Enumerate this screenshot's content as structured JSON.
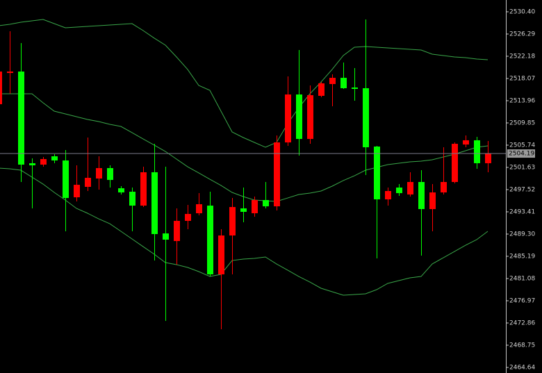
{
  "chart_data": {
    "type": "candlestick",
    "bull_color": "#ff0000",
    "bear_color": "#00ff00",
    "open": [
      2513.31,
      2519.09,
      2519.35,
      2502.4,
      2502.14,
      2503.68,
      2502.91,
      2496.1,
      2498.03,
      2499.57,
      2501.5,
      2497.77,
      2497.13,
      2494.56,
      2500.73,
      2489.42,
      2488.01,
      2491.74,
      2493.15,
      2494.56,
      2481.85,
      2489.04,
      2494.05,
      2493.15,
      2495.59,
      2494.43,
      2506.25,
      2515.11,
      2506.89,
      2514.86,
      2517.04,
      2518.19,
      2516.4,
      2516.27,
      2505.48,
      2495.72,
      2497.9,
      2496.62,
      2498.93,
      2493.92,
      2497.0,
      2498.93,
      2505.86,
      2506.64,
      2502.4
    ],
    "high": [
      2520.38,
      2526.8,
      2524.62,
      2503.3,
      2503.55,
      2504.07,
      2504.84,
      2502.01,
      2507.15,
      2503.68,
      2502.01,
      2498.16,
      2497.9,
      2501.75,
      2505.99,
      2501.75,
      2494.05,
      2494.69,
      2496.87,
      2497.13,
      2490.19,
      2495.97,
      2497.9,
      2496.23,
      2498.93,
      2507.53,
      2518.45,
      2523.33,
      2516.78,
      2517.42,
      2518.84,
      2521.02,
      2519.99,
      2528.98,
      2505.61,
      2497.9,
      2498.54,
      2500.73,
      2501.11,
      2498.54,
      2505.35,
      2506.25,
      2507.53,
      2507.28,
      2506.51
    ],
    "low": [
      2512.03,
      2515.24,
      2498.93,
      2494.05,
      2501.75,
      2502.4,
      2489.81,
      2495.33,
      2497.26,
      2497.52,
      2497.9,
      2496.62,
      2489.81,
      2494.3,
      2484.41,
      2473.24,
      2483.64,
      2490.19,
      2492.76,
      2481.46,
      2471.7,
      2481.85,
      2491.48,
      2492.51,
      2494.05,
      2493.66,
      2505.61,
      2503.81,
      2505.99,
      2514.6,
      2512.93,
      2516.14,
      2513.96,
      2500.21,
      2484.8,
      2494.56,
      2496.36,
      2496.23,
      2485.31,
      2489.81,
      2496.62,
      2498.67,
      2505.35,
      2501.37,
      2500.73
    ],
    "close": [
      2519.35,
      2519.35,
      2502.14,
      2502.01,
      2503.17,
      2502.91,
      2495.97,
      2498.41,
      2499.7,
      2501.5,
      2499.31,
      2497.0,
      2494.56,
      2500.73,
      2489.3,
      2488.27,
      2491.74,
      2493.02,
      2494.82,
      2481.85,
      2489.04,
      2494.3,
      2493.41,
      2495.59,
      2494.43,
      2506.25,
      2515.11,
      2506.89,
      2514.98,
      2517.17,
      2518.19,
      2516.27,
      2516.14,
      2505.35,
      2495.72,
      2497.26,
      2496.87,
      2498.93,
      2493.92,
      2497.0,
      2498.93,
      2505.99,
      2506.64,
      2502.4,
      2504.19
    ],
    "overlays": [
      {
        "color": "#3aa84a",
        "values": [
          2527.83,
          2528.08,
          2528.47,
          2528.73,
          2528.98,
          2528.21,
          2527.44,
          2527.57,
          2527.7,
          2527.83,
          2527.96,
          2528.08,
          2528.21,
          2526.93,
          2525.52,
          2524.23,
          2522.05,
          2519.74,
          2516.78,
          2515.88,
          2512.03,
          2508.18,
          2507.15,
          2506.25,
          2505.35,
          2506.25,
          2509.72,
          2512.67,
          2515.24,
          2517.42,
          2519.74,
          2522.31,
          2523.85,
          2523.97,
          2523.85,
          2523.72,
          2523.59,
          2523.46,
          2523.33,
          2522.56,
          2522.31,
          2522.05,
          2521.92,
          2521.66,
          2521.53
        ]
      },
      {
        "color": "#3aa84a",
        "values": [
          2515.24,
          2515.24,
          2515.24,
          2515.24,
          2513.57,
          2512.03,
          2511.52,
          2511.0,
          2510.49,
          2510.1,
          2509.59,
          2509.2,
          2508.05,
          2506.89,
          2505.74,
          2504.58,
          2503.17,
          2501.75,
          2500.6,
          2499.44,
          2498.29,
          2497.0,
          2496.23,
          2495.59,
          2495.46,
          2495.33,
          2495.97,
          2496.62,
          2496.87,
          2497.26,
          2498.16,
          2499.19,
          2500.08,
          2501.11,
          2501.63,
          2502.14,
          2502.4,
          2502.65,
          2502.78,
          2503.04,
          2503.55,
          2504.07,
          2504.71,
          2505.35,
          2505.61
        ]
      },
      {
        "color": "#3aa84a",
        "values": [
          2501.5,
          2501.37,
          2501.11,
          2499.83,
          2498.54,
          2497.0,
          2495.59,
          2494.05,
          2493.15,
          2492.12,
          2491.22,
          2489.81,
          2488.4,
          2486.98,
          2485.57,
          2484.03,
          2483.64,
          2483.13,
          2482.36,
          2481.46,
          2481.85,
          2484.41,
          2484.67,
          2484.8,
          2485.06,
          2483.77,
          2482.62,
          2481.46,
          2480.43,
          2479.28,
          2478.64,
          2477.99,
          2478.12,
          2478.25,
          2479.02,
          2480.18,
          2480.69,
          2481.2,
          2481.46,
          2483.77,
          2484.93,
          2486.08,
          2487.24,
          2488.27,
          2489.81
        ]
      }
    ],
    "last_price": 2504.19,
    "ylim": [
      2463.61,
      2532.58
    ],
    "yticks": [
      {
        "value": 2530.4,
        "label": "2530.40"
      },
      {
        "value": 2526.29,
        "label": "2526.29"
      },
      {
        "value": 2522.18,
        "label": "2522.18"
      },
      {
        "value": 2518.07,
        "label": "2518.07"
      },
      {
        "value": 2513.96,
        "label": "2513.96"
      },
      {
        "value": 2509.85,
        "label": "2509.85"
      },
      {
        "value": 2505.74,
        "label": "2505.74"
      },
      {
        "value": 2501.63,
        "label": "2501.63"
      },
      {
        "value": 2497.52,
        "label": "2497.52"
      },
      {
        "value": 2493.41,
        "label": "2493.41"
      },
      {
        "value": 2489.3,
        "label": "2489.30"
      },
      {
        "value": 2485.19,
        "label": "2485.19"
      },
      {
        "value": 2481.08,
        "label": "2481.08"
      },
      {
        "value": 2476.97,
        "label": "2476.97"
      },
      {
        "value": 2472.86,
        "label": "2472.86"
      },
      {
        "value": 2468.75,
        "label": "2468.75"
      },
      {
        "value": 2464.64,
        "label": "2464.64"
      }
    ]
  }
}
